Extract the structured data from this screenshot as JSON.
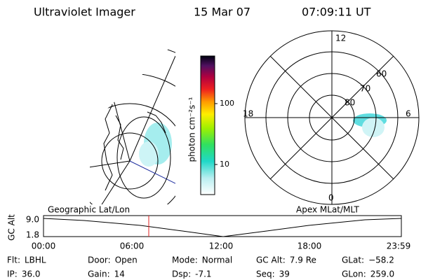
{
  "header": {
    "instrument": "Ultraviolet Imager",
    "date": "15 Mar 07",
    "time": "07:09:11 UT"
  },
  "colorbar": {
    "label": "photon cm⁻²s⁻¹",
    "ticks": [
      "100",
      "10"
    ]
  },
  "polar_plot": {
    "mlt_labels": [
      "12",
      "18",
      "6",
      "0"
    ],
    "lat_labels": [
      "60",
      "70",
      "80"
    ]
  },
  "timeline": {
    "left_label": "Geographic Lat/Lon",
    "right_label": "Apex MLat/MLT",
    "axis_label": "GC Alt",
    "yticks": [
      "9.0",
      "1.8"
    ],
    "xticks": [
      "00:00",
      "06:00",
      "12:00",
      "18:00",
      "23:59"
    ]
  },
  "info": [
    [
      {
        "label": "Flt:",
        "value": "LBHL"
      },
      {
        "label": "Door:",
        "value": "Open"
      },
      {
        "label": "Mode:",
        "value": "Normal"
      },
      {
        "label": "GC Alt:",
        "value": "7.9 Re"
      },
      {
        "label": "GLat:",
        "value": "−58.2"
      }
    ],
    [
      {
        "label": "IP:",
        "value": "36.0"
      },
      {
        "label": "Gain:",
        "value": "14"
      },
      {
        "label": "Dsp:",
        "value": "-7.1"
      },
      {
        "label": "Seq:",
        "value": "39"
      },
      {
        "label": "GLon:",
        "value": "259.0"
      }
    ]
  ]
}
